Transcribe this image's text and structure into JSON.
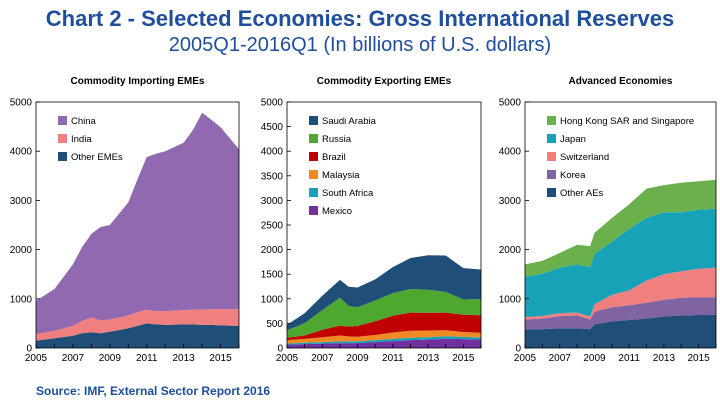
{
  "header": {
    "title": "Chart 2 - Selected Economies: Gross International Reserves",
    "subtitle": "2005Q1-2016Q1 (In billions of U.S. dollars)"
  },
  "footer": {
    "source": "Source: IMF, External Sector Report 2016"
  },
  "chart_data": [
    {
      "type": "area",
      "stacked": true,
      "title": "Commodity Importing EMEs",
      "x": [
        2005,
        2006,
        2007,
        2007.5,
        2008,
        2008.5,
        2009,
        2010,
        2010.5,
        2011,
        2011.5,
        2012,
        2013,
        2013.5,
        2014,
        2014.5,
        2015,
        2016
      ],
      "series": [
        {
          "name": "Other EMEs",
          "color": "#1f4e79",
          "values": [
            150,
            200,
            250,
            300,
            320,
            300,
            330,
            400,
            450,
            500,
            480,
            470,
            480,
            480,
            470,
            470,
            460,
            450
          ]
        },
        {
          "name": "India",
          "color": "#f08080",
          "values": [
            130,
            150,
            200,
            250,
            300,
            260,
            250,
            260,
            280,
            280,
            270,
            280,
            290,
            300,
            310,
            320,
            330,
            340
          ]
        },
        {
          "name": "China",
          "color": "#9069b0",
          "values": [
            680,
            850,
            1250,
            1500,
            1700,
            1900,
            1920,
            2300,
            2700,
            3100,
            3200,
            3250,
            3400,
            3650,
            4000,
            3850,
            3700,
            3250
          ]
        }
      ],
      "xticks": [
        "2005",
        "2007",
        "2009",
        "2011",
        "2013",
        "2015"
      ],
      "ylim": [
        0,
        5000
      ],
      "yticks": [
        "0",
        "1000",
        "2000",
        "3000",
        "4000",
        "5000"
      ],
      "legend_position": "top-left"
    },
    {
      "type": "area",
      "stacked": true,
      "title": "Commodity Exporting EMEs",
      "x": [
        2005,
        2006,
        2007,
        2008,
        2008.5,
        2009,
        2010,
        2011,
        2012,
        2013,
        2014,
        2015,
        2016
      ],
      "series": [
        {
          "name": "Mexico",
          "color": "#7030a0",
          "values": [
            70,
            80,
            90,
            100,
            100,
            100,
            120,
            140,
            160,
            170,
            190,
            180,
            170
          ]
        },
        {
          "name": "South Africa",
          "color": "#17a2b8",
          "values": [
            20,
            25,
            30,
            35,
            35,
            35,
            40,
            45,
            50,
            50,
            50,
            45,
            45
          ]
        },
        {
          "name": "Malaysia",
          "color": "#f08a24",
          "values": [
            70,
            80,
            100,
            120,
            100,
            95,
            105,
            130,
            140,
            135,
            120,
            100,
            95
          ]
        },
        {
          "name": "Brazil",
          "color": "#c00000",
          "values": [
            50,
            70,
            150,
            200,
            200,
            220,
            280,
            340,
            370,
            360,
            360,
            350,
            355
          ]
        },
        {
          "name": "Russia",
          "color": "#4ea72e",
          "values": [
            150,
            250,
            400,
            570,
            420,
            380,
            420,
            460,
            480,
            470,
            420,
            310,
            330
          ]
        },
        {
          "name": "Saudi Arabia",
          "color": "#1f4e79",
          "values": [
            110,
            200,
            290,
            360,
            390,
            400,
            430,
            530,
            630,
            700,
            740,
            640,
            600
          ]
        }
      ],
      "xticks": [
        "2005",
        "2007",
        "2009",
        "2011",
        "2013",
        "2015"
      ],
      "ylim": [
        0,
        5000
      ],
      "yticks": [
        "0",
        "500",
        "1000",
        "1500",
        "2000",
        "2500",
        "3000",
        "3500",
        "4000",
        "4500",
        "5000"
      ],
      "legend_position": "top-left"
    },
    {
      "type": "area",
      "stacked": true,
      "title": "Advanced Economies",
      "x": [
        2005,
        2006,
        2007,
        2008,
        2008.75,
        2009,
        2010,
        2011,
        2012,
        2013,
        2014,
        2015,
        2016
      ],
      "series": [
        {
          "name": "Other AEs",
          "color": "#1f4e79",
          "values": [
            380,
            380,
            400,
            400,
            380,
            480,
            540,
            570,
            600,
            640,
            660,
            670,
            670
          ]
        },
        {
          "name": "Korea",
          "color": "#8064a2",
          "values": [
            200,
            220,
            250,
            260,
            200,
            260,
            290,
            300,
            320,
            340,
            360,
            360,
            360
          ]
        },
        {
          "name": "Switzerland",
          "color": "#f08080",
          "values": [
            50,
            50,
            60,
            60,
            60,
            150,
            250,
            300,
            450,
            520,
            540,
            580,
            600
          ]
        },
        {
          "name": "Japan",
          "color": "#17a2b8",
          "values": [
            820,
            860,
            920,
            980,
            1000,
            1020,
            1080,
            1250,
            1270,
            1260,
            1200,
            1200,
            1200
          ]
        },
        {
          "name": "Hong Kong SAR and Singapore",
          "color": "#6ab04c",
          "values": [
            250,
            260,
            300,
            400,
            430,
            430,
            480,
            500,
            600,
            550,
            600,
            580,
            590
          ]
        }
      ],
      "xticks": [
        "2005",
        "2007",
        "2009",
        "2011",
        "2013",
        "2015"
      ],
      "ylim": [
        0,
        5000
      ],
      "yticks": [
        "0",
        "1000",
        "2000",
        "3000",
        "4000",
        "5000"
      ],
      "legend_position": "top-left"
    }
  ]
}
